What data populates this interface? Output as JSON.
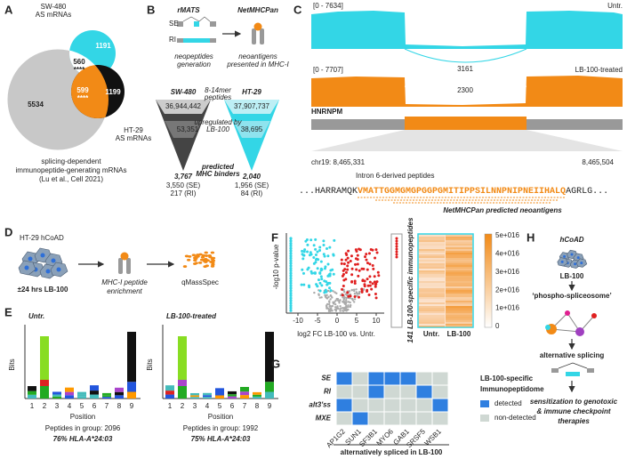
{
  "A": {
    "label": "A",
    "sw480": [
      "SW-480",
      "AS mRNAs"
    ],
    "ht29": [
      "HT-29",
      "AS mRNAs"
    ],
    "counts": {
      "gray_only": "5534",
      "sw_overlap": "560",
      "sw_overlap_sig": "****",
      "sw_only": "1191",
      "ht_overlap": "599",
      "ht_overlap_sig": "****",
      "ht_only": "1199"
    },
    "caption": [
      "splicing-dependent",
      "immunopeptide-generating mRNAs",
      "(Lu et al., Cell 2021)"
    ]
  },
  "B": {
    "label": "B",
    "tool1": "rMATS",
    "tool2": "NetMHCPan",
    "se": "SE",
    "ri": "RI",
    "step1": [
      "neopeptides",
      "generation"
    ],
    "step2": [
      "neoantigens",
      "presented in MHC-I"
    ],
    "lines": [
      "SW-480",
      "HT-29"
    ],
    "row1": [
      "8-14mer",
      "peptides"
    ],
    "sw_all": "36,944,442",
    "ht_all": "37,907,737",
    "row2": [
      "upregulated by",
      "LB-100"
    ],
    "sw_up": "53,351",
    "ht_up": "38,695",
    "row3": [
      "predicted",
      "MHC binders"
    ],
    "sw_pred": "3,767",
    "ht_pred": "2,040",
    "sw_split": [
      "3,550 (SE)",
      "217 (RI)"
    ],
    "ht_split": [
      "1,956 (SE)",
      "84 (RI)"
    ]
  },
  "C": {
    "label": "C",
    "track1_range": "[0 - 7634]",
    "track1_name": "Untr.",
    "junction1": "3161",
    "track2_range": "[0 - 7707]",
    "track2_name": "LB-100-treated",
    "junction2": "2300",
    "gene": "HNRNPM",
    "coord_start": "chr19: 8,465,331",
    "coord_end": "8,465,504",
    "peptides_title": "Intron 6-derived peptides",
    "sequence": {
      "prefix": "...HARRAMQK",
      "core": "VMATTGGMGMGPGGPGMITIPPSILNNPNIPNEIIHALQ",
      "suffix": "AGRLG..."
    },
    "neoantigens": "NetMHCPan predicted neoantigens"
  },
  "D": {
    "label": "D",
    "model": "HT-29 hCoAD",
    "treatment": "±24 hrs LB-100",
    "step": [
      "MHC-I peptide",
      "enrichment"
    ],
    "method": "qMassSpec"
  },
  "E": {
    "label": "E",
    "logos": [
      {
        "title": "Untr.",
        "peptides": "Peptides in group: 2096",
        "hla": "76% HLA-A*24:03"
      },
      {
        "title": "LB-100-treated",
        "peptides": "Peptides in group: 1992",
        "hla": "75% HLA-A*24:03"
      }
    ],
    "y_label": "Bits",
    "x_label": "Position",
    "positions": [
      1,
      2,
      3,
      4,
      5,
      6,
      7,
      8,
      9
    ]
  },
  "F": {
    "label": "F",
    "y_label": "-log10 p-value",
    "x_label": "log2 FC LB-100 vs. Untr.",
    "xticks": [
      -10,
      -5,
      0,
      5,
      10
    ],
    "strip_label": "141 LB-100-specific immunopeptides",
    "colorbar": [
      "5e+016",
      "4e+016",
      "3e+016",
      "2e+016",
      "1e+016",
      "0"
    ],
    "columns": [
      "Untr.",
      "LB-100"
    ]
  },
  "G": {
    "label": "G",
    "rows": [
      "SE",
      "RI",
      "alt3'ss",
      "MXE"
    ],
    "columns": [
      "AP1G2",
      "SUN1",
      "SF3B1",
      "MYO6",
      "GAB1",
      "SRSF5",
      "WSB1"
    ],
    "detected": [
      [
        1,
        0,
        1,
        1,
        1,
        0,
        0
      ],
      [
        0,
        0,
        1,
        0,
        0,
        1,
        0
      ],
      [
        1,
        0,
        0,
        0,
        0,
        0,
        1
      ],
      [
        0,
        1,
        0,
        0,
        0,
        0,
        0
      ]
    ],
    "legend_title": [
      "LB-100-specific",
      "Immunopeptidome"
    ],
    "legend": [
      "detected",
      "non-detected"
    ],
    "x_title": "alternatively spliced in LB-100"
  },
  "H": {
    "label": "H",
    "model": "hCoAD",
    "drug": "LB-100",
    "complex": "‘phospho-spliceosome’",
    "process": "alternative splicing",
    "outcome": [
      "sensitization to genotoxic",
      "& immune checkpoint",
      "therapies"
    ]
  }
}
